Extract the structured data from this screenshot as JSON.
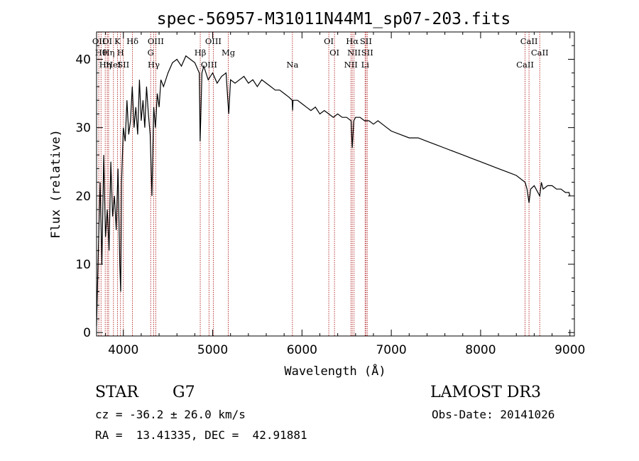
{
  "chart_data": {
    "type": "line",
    "title": "spec-56957-M31011N44M1_sp07-203.fits",
    "xlabel": "Wavelength (Å)",
    "ylabel": "Flux (relative)",
    "xlim": [
      3700,
      9050
    ],
    "ylim": [
      -0.5,
      44
    ],
    "xticks": [
      4000,
      5000,
      6000,
      7000,
      8000,
      9000
    ],
    "yticks": [
      0,
      10,
      20,
      30,
      40
    ],
    "xtick_labels": [
      "4000",
      "5000",
      "6000",
      "7000",
      "8000",
      "9000"
    ],
    "ytick_labels": [
      "0",
      "10",
      "20",
      "30",
      "40"
    ],
    "series": [
      {
        "name": "spectrum",
        "x": [
          3700,
          3720,
          3740,
          3760,
          3780,
          3800,
          3820,
          3840,
          3860,
          3880,
          3900,
          3920,
          3940,
          3960,
          3970,
          3980,
          4000,
          4020,
          4040,
          4060,
          4080,
          4100,
          4120,
          4140,
          4160,
          4180,
          4200,
          4220,
          4240,
          4260,
          4280,
          4300,
          4320,
          4340,
          4360,
          4380,
          4400,
          4420,
          4450,
          4500,
          4550,
          4600,
          4650,
          4700,
          4750,
          4800,
          4850,
          4860,
          4880,
          4900,
          4950,
          5000,
          5050,
          5100,
          5150,
          5170,
          5180,
          5200,
          5250,
          5300,
          5350,
          5400,
          5450,
          5500,
          5550,
          5600,
          5650,
          5700,
          5750,
          5800,
          5850,
          5890,
          5895,
          5900,
          5950,
          6000,
          6050,
          6100,
          6150,
          6200,
          6250,
          6300,
          6350,
          6400,
          6450,
          6500,
          6550,
          6563,
          6580,
          6600,
          6650,
          6700,
          6750,
          6800,
          6850,
          6900,
          6950,
          7000,
          7100,
          7200,
          7300,
          7400,
          7500,
          7600,
          7700,
          7800,
          7900,
          8000,
          8100,
          8200,
          8300,
          8400,
          8498,
          8520,
          8542,
          8560,
          8600,
          8662,
          8680,
          8700,
          8750,
          8800,
          8850,
          8900,
          8950,
          8990,
          9000
        ],
        "y": [
          1,
          12,
          22,
          10,
          26,
          14,
          18,
          12,
          25,
          17,
          20,
          15,
          24,
          10,
          6,
          22,
          30,
          28,
          34,
          29,
          31,
          36,
          30,
          33,
          29,
          37,
          31,
          34,
          30,
          36,
          32,
          29,
          20,
          33,
          30,
          35,
          33,
          37,
          36,
          38,
          39.5,
          40,
          39,
          40.5,
          40,
          39.5,
          38,
          28,
          38,
          39,
          37,
          38,
          36.5,
          37.5,
          38,
          34,
          32,
          37,
          36.5,
          37,
          37.5,
          36.5,
          37,
          36,
          37,
          36.5,
          36,
          35.5,
          35.5,
          35,
          34.5,
          34,
          32.5,
          34,
          34,
          33.5,
          33,
          32.5,
          33,
          32,
          32.5,
          32,
          31.5,
          32,
          31.5,
          31.5,
          31,
          27,
          31,
          31.5,
          31.5,
          31,
          31,
          30.5,
          31,
          30.5,
          30,
          29.5,
          29,
          28.5,
          28.5,
          28,
          27.5,
          27,
          26.5,
          26,
          25.5,
          25,
          24.5,
          24,
          23.5,
          23,
          22,
          21,
          19,
          21,
          21.5,
          20,
          22,
          21,
          21.5,
          21.5,
          21,
          21,
          20.5,
          20.5,
          20
        ]
      }
    ],
    "line_markers": [
      {
        "wavelength": 3725,
        "label": "OII"
      },
      {
        "wavelength": 3750,
        "label": "Hθ"
      },
      {
        "wavelength": 3797,
        "label": "Hη"
      },
      {
        "wavelength": 3820,
        "label": "OI"
      },
      {
        "wavelength": 3835,
        "label": "Hη"
      },
      {
        "wavelength": 3889,
        "label": "HeI"
      },
      {
        "wavelength": 3934,
        "label": "K"
      },
      {
        "wavelength": 3968,
        "label": "H"
      },
      {
        "wavelength": 4000,
        "label": "SII"
      },
      {
        "wavelength": 4102,
        "label": "Hδ"
      },
      {
        "wavelength": 4306,
        "label": "G"
      },
      {
        "wavelength": 4340,
        "label": "Hγ"
      },
      {
        "wavelength": 4363,
        "label": "OIII"
      },
      {
        "wavelength": 4861,
        "label": "Hβ"
      },
      {
        "wavelength": 4959,
        "label": "OIII"
      },
      {
        "wavelength": 5007,
        "label": "OIII"
      },
      {
        "wavelength": 5175,
        "label": "Mg"
      },
      {
        "wavelength": 5893,
        "label": "Na"
      },
      {
        "wavelength": 6300,
        "label": "OI"
      },
      {
        "wavelength": 6364,
        "label": "OI"
      },
      {
        "wavelength": 6548,
        "label": "NII"
      },
      {
        "wavelength": 6563,
        "label": "Hα"
      },
      {
        "wavelength": 6583,
        "label": "NII"
      },
      {
        "wavelength": 6707,
        "label": "Li"
      },
      {
        "wavelength": 6716,
        "label": "SII"
      },
      {
        "wavelength": 6731,
        "label": "SII"
      },
      {
        "wavelength": 8498,
        "label": "CaII"
      },
      {
        "wavelength": 8542,
        "label": "CaII"
      },
      {
        "wavelength": 8662,
        "label": "CaII"
      }
    ]
  },
  "info": {
    "object_class": "STAR",
    "subclass": "G7",
    "survey": "LAMOST DR3",
    "redshift_line": "cz = -36.2 ± 26.0 km/s",
    "obs_date_line": "Obs-Date: 20141026",
    "coords_line": "RA =  13.41335, DEC =  42.91881"
  },
  "colors": {
    "spectrum": "#000000",
    "marker_lines": "#b22222",
    "axes": "#000000",
    "background": "#ffffff"
  }
}
